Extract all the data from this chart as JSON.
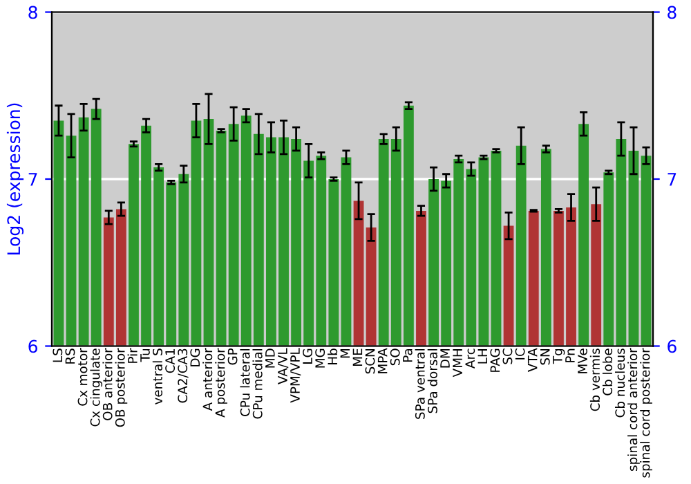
{
  "chart_data": {
    "type": "bar",
    "ylabel": "Log2 (expression)",
    "categories": [
      "LS",
      "RS",
      "Cx motor",
      "Cx cingulate",
      "OB anterior",
      "OB posterior",
      "Pir",
      "Tu",
      "ventral S",
      "CA1",
      "CA2/CA3",
      "DG",
      "A anterior",
      "A posterior",
      "GP",
      "CPu lateral",
      "CPu medial",
      "MD",
      "VA/VL",
      "VPM/VPL",
      "LG",
      "MG",
      "Hb",
      "M",
      "ME",
      "SCN",
      "MPA",
      "SO",
      "Pa",
      "SPa ventral",
      "SPa dorsal",
      "DM",
      "VMH",
      "Arc",
      "LH",
      "PAG",
      "SC",
      "IC",
      "VTA",
      "SN",
      "Tg",
      "Pn",
      "MVe",
      "Cb vermis",
      "Cb lobe",
      "Cb nucleus",
      "spinal cord anterior",
      "spinal cord posterior"
    ],
    "values": [
      7.35,
      7.26,
      7.37,
      7.42,
      6.77,
      6.82,
      7.21,
      7.32,
      7.07,
      6.98,
      7.03,
      7.35,
      7.36,
      7.29,
      7.33,
      7.38,
      7.27,
      7.25,
      7.25,
      7.24,
      7.11,
      7.14,
      7.0,
      7.13,
      6.87,
      6.71,
      7.24,
      7.24,
      7.44,
      6.81,
      7.0,
      6.99,
      7.12,
      7.06,
      7.13,
      7.17,
      6.72,
      7.2,
      6.81,
      7.18,
      6.81,
      6.83,
      7.33,
      6.85,
      7.04,
      7.24,
      7.17,
      7.14
    ],
    "errors": [
      0.09,
      0.13,
      0.08,
      0.06,
      0.04,
      0.04,
      0.015,
      0.04,
      0.02,
      0.01,
      0.05,
      0.1,
      0.15,
      0.01,
      0.1,
      0.04,
      0.12,
      0.09,
      0.1,
      0.07,
      0.1,
      0.02,
      0.01,
      0.04,
      0.11,
      0.08,
      0.03,
      0.07,
      0.02,
      0.03,
      0.07,
      0.04,
      0.02,
      0.04,
      0.01,
      0.01,
      0.08,
      0.11,
      0.005,
      0.02,
      0.01,
      0.08,
      0.07,
      0.1,
      0.01,
      0.1,
      0.14,
      0.05
    ],
    "colors": [
      "#2e9a2e",
      "#2e9a2e",
      "#2e9a2e",
      "#2e9a2e",
      "#b03434",
      "#b03434",
      "#2e9a2e",
      "#2e9a2e",
      "#2e9a2e",
      "#2e9a2e",
      "#2e9a2e",
      "#2e9a2e",
      "#2e9a2e",
      "#2e9a2e",
      "#2e9a2e",
      "#2e9a2e",
      "#2e9a2e",
      "#2e9a2e",
      "#2e9a2e",
      "#2e9a2e",
      "#2e9a2e",
      "#2e9a2e",
      "#2e9a2e",
      "#2e9a2e",
      "#b03434",
      "#b03434",
      "#2e9a2e",
      "#2e9a2e",
      "#2e9a2e",
      "#b03434",
      "#2e9a2e",
      "#2e9a2e",
      "#2e9a2e",
      "#2e9a2e",
      "#2e9a2e",
      "#2e9a2e",
      "#b03434",
      "#2e9a2e",
      "#b03434",
      "#2e9a2e",
      "#b03434",
      "#b03434",
      "#2e9a2e",
      "#b03434",
      "#2e9a2e",
      "#2e9a2e",
      "#2e9a2e",
      "#2e9a2e"
    ],
    "ylim": [
      6,
      8
    ],
    "yticks": [
      6,
      7,
      8
    ],
    "y2lim": [
      6,
      8
    ],
    "y2ticks": [
      6,
      7,
      8
    ],
    "grid": "y"
  }
}
